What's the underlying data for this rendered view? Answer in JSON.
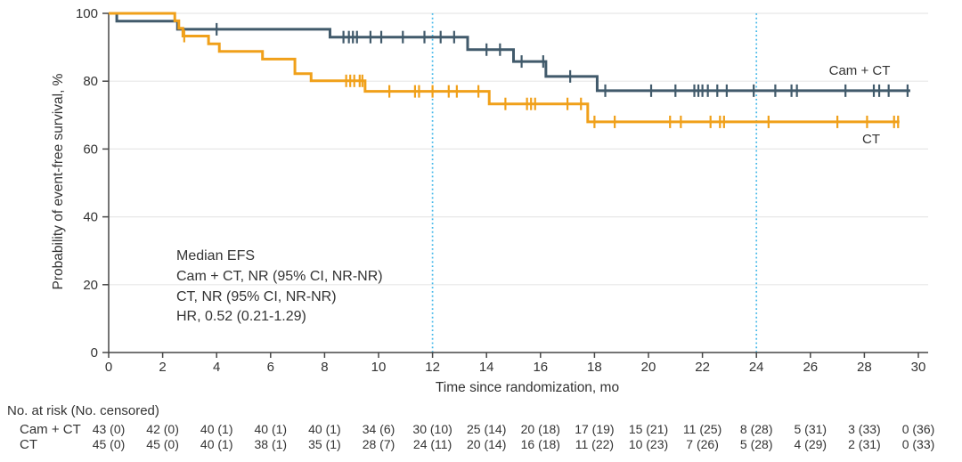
{
  "chart_data": {
    "type": "line",
    "subtype": "kaplan_meier_step",
    "title": "",
    "xlabel": "Time since randomization, mo",
    "ylabel": "Probability of event-free survival, %",
    "xlim": [
      0,
      30
    ],
    "ylim": [
      0,
      100
    ],
    "xticks": [
      0,
      2,
      4,
      6,
      8,
      10,
      12,
      14,
      16,
      18,
      20,
      22,
      24,
      26,
      28,
      30
    ],
    "yticks": [
      0,
      20,
      40,
      60,
      80,
      100
    ],
    "grid": "horizontal",
    "reference_lines_x": [
      12,
      24
    ],
    "legend_position": "right-on-plot",
    "colors": {
      "grid": "#E7E7E7",
      "axis": "#474747",
      "reference": "#41B7E9",
      "text": "#333333"
    },
    "series": [
      {
        "name": "Cam + CT",
        "color": "#415A6B",
        "steps": [
          [
            0,
            100
          ],
          [
            0.3,
            97.7
          ],
          [
            2.55,
            95.3
          ],
          [
            8.2,
            93.0
          ],
          [
            13.3,
            89.3
          ],
          [
            15.0,
            85.8
          ],
          [
            16.2,
            81.4
          ],
          [
            18.1,
            77.2
          ],
          [
            29.7,
            77.2
          ]
        ],
        "censor_months": [
          4.0,
          8.7,
          8.9,
          9.05,
          9.2,
          9.7,
          10.1,
          10.9,
          11.7,
          12.3,
          12.8,
          14.0,
          14.5,
          15.3,
          16.1,
          17.1,
          18.4,
          20.1,
          21.0,
          21.7,
          21.85,
          22.0,
          22.2,
          22.55,
          22.9,
          23.9,
          24.7,
          25.3,
          25.5,
          27.3,
          28.35,
          28.55,
          28.9,
          29.6
        ]
      },
      {
        "name": "CT",
        "color": "#F0A01A",
        "steps": [
          [
            0,
            100
          ],
          [
            2.45,
            97.8
          ],
          [
            2.6,
            95.6
          ],
          [
            2.75,
            93.3
          ],
          [
            3.7,
            91.0
          ],
          [
            4.1,
            88.8
          ],
          [
            5.7,
            86.5
          ],
          [
            6.9,
            82.2
          ],
          [
            7.5,
            80.1
          ],
          [
            9.5,
            77.0
          ],
          [
            14.1,
            73.3
          ],
          [
            17.75,
            68.0
          ],
          [
            29.3,
            68.0
          ]
        ],
        "censor_months": [
          2.8,
          8.8,
          8.95,
          9.1,
          9.3,
          9.4,
          10.4,
          11.35,
          11.5,
          12.0,
          12.6,
          12.9,
          13.7,
          14.7,
          15.5,
          15.65,
          15.8,
          17.0,
          17.5,
          18.0,
          18.75,
          20.8,
          21.2,
          22.3,
          22.65,
          22.8,
          24.45,
          27.0,
          28.1,
          29.1,
          29.25
        ]
      }
    ],
    "annotation": {
      "lines": [
        "Median EFS",
        "Cam + CT, NR (95% CI, NR-NR)",
        "CT, NR (95% CI, NR-NR)",
        "HR, 0.52 (0.21-1.29)"
      ]
    },
    "risk_table": {
      "header": "No. at risk (No. censored)",
      "timepoints": [
        0,
        2,
        4,
        6,
        8,
        10,
        12,
        14,
        16,
        18,
        20,
        22,
        24,
        26,
        28,
        30
      ],
      "rows": [
        {
          "label": "Cam + CT",
          "values": [
            "43 (0)",
            "42 (0)",
            "40 (1)",
            "40 (1)",
            "40 (1)",
            "34 (6)",
            "30 (10)",
            "25 (14)",
            "20 (18)",
            "17 (19)",
            "15 (21)",
            "11 (25)",
            "8 (28)",
            "5 (31)",
            "3 (33)",
            "0 (36)"
          ]
        },
        {
          "label": "CT",
          "values": [
            "45 (0)",
            "45 (0)",
            "40 (1)",
            "38 (1)",
            "35 (1)",
            "28 (7)",
            "24 (11)",
            "20 (14)",
            "16 (18)",
            "11 (22)",
            "10 (23)",
            "7 (26)",
            "5 (28)",
            "4 (29)",
            "2 (31)",
            "0 (33)"
          ]
        }
      ]
    }
  }
}
